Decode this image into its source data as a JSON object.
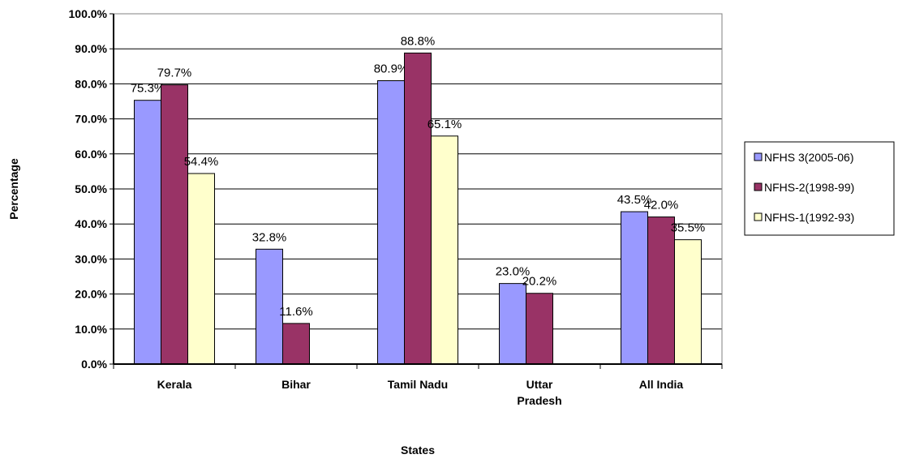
{
  "chart_data": {
    "type": "bar",
    "x_label": "States",
    "y_label": "Percentage",
    "categories": [
      "Kerala",
      "Bihar",
      "Tamil Nadu",
      "Uttar Pradesh",
      "All India"
    ],
    "series": [
      {
        "name": "NFHS 3(2005-06)",
        "color": "#9999ff",
        "values": [
          75.3,
          32.8,
          80.9,
          23.0,
          43.5
        ],
        "value_labels": [
          "75.3%",
          "32.8%",
          "80.9%",
          "23.0%",
          "43.5%"
        ]
      },
      {
        "name": "NFHS-2(1998-99)",
        "color": "#993366",
        "values": [
          79.7,
          11.6,
          88.8,
          20.2,
          42.0
        ],
        "value_labels": [
          "79.7%",
          "11.6%",
          "88.8%",
          "20.2%",
          "42.0%"
        ]
      },
      {
        "name": "NFHS-1(1992-93)",
        "color": "#ffffcc",
        "values": [
          54.4,
          null,
          65.1,
          null,
          35.5
        ],
        "value_labels": [
          "54.4%",
          null,
          "65.1%",
          null,
          "35.5%"
        ]
      }
    ],
    "ylim": [
      0,
      100
    ],
    "yticks": [
      {
        "value": 0,
        "label": "0.0%"
      },
      {
        "value": 10,
        "label": "10.0%"
      },
      {
        "value": 20,
        "label": "20.0%"
      },
      {
        "value": 30,
        "label": "30.0%"
      },
      {
        "value": 40,
        "label": "40.0%"
      },
      {
        "value": 50,
        "label": "50.0%"
      },
      {
        "value": 60,
        "label": "60.0%"
      },
      {
        "value": 70,
        "label": "70.0%"
      },
      {
        "value": 80,
        "label": "80.0%"
      },
      {
        "value": 90,
        "label": "90.0%"
      },
      {
        "value": 100,
        "label": "100.0%"
      }
    ],
    "grid": true,
    "legend": "right"
  }
}
